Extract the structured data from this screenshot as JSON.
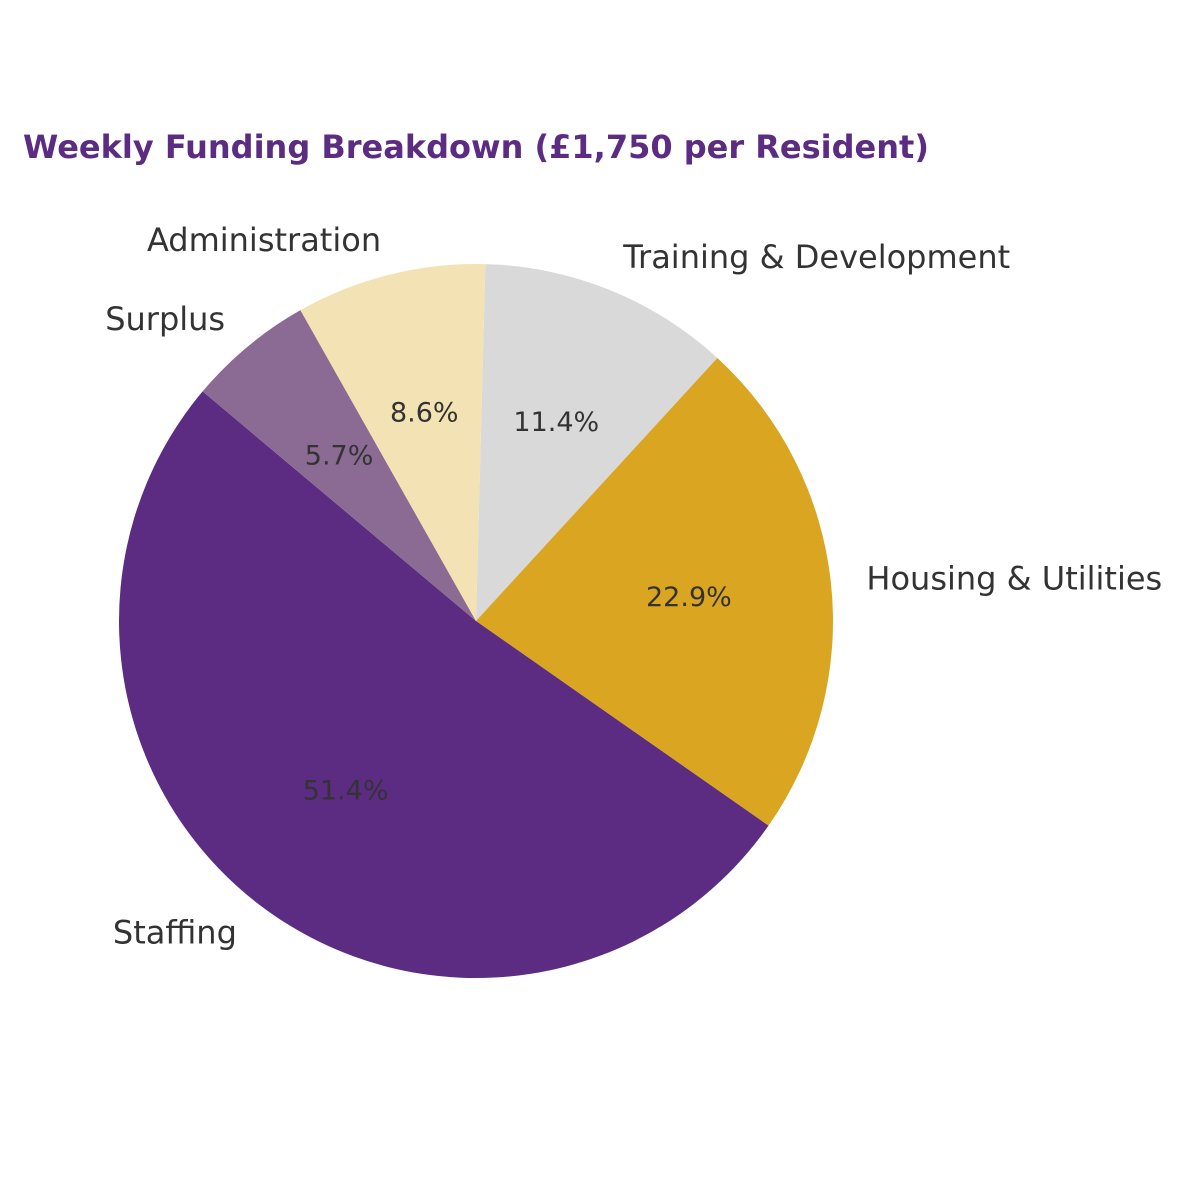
{
  "chart_data": {
    "type": "pie",
    "title": "Weekly Funding Breakdown (£1,750 per Resident)",
    "start_angle_deg": -88.5,
    "direction": "clockwise",
    "slices": [
      {
        "label": "Training & Development",
        "value": 11.4,
        "pct_label": "11.4%",
        "color": "#d9d9d9"
      },
      {
        "label": "Housing & Utilities",
        "value": 22.9,
        "pct_label": "22.9%",
        "color": "#daa520"
      },
      {
        "label": "Staffing",
        "value": 51.4,
        "pct_label": "51.4%",
        "color": "#5b2c82"
      },
      {
        "label": "Surplus",
        "value": 5.7,
        "pct_label": "5.7%",
        "color": "#8b6b93"
      },
      {
        "label": "Administration",
        "value": 8.6,
        "pct_label": "8.6%",
        "color": "#f3e2b3"
      }
    ]
  },
  "colors": {
    "title": "#5b2c82",
    "text": "#333333",
    "background": "#ffffff"
  }
}
